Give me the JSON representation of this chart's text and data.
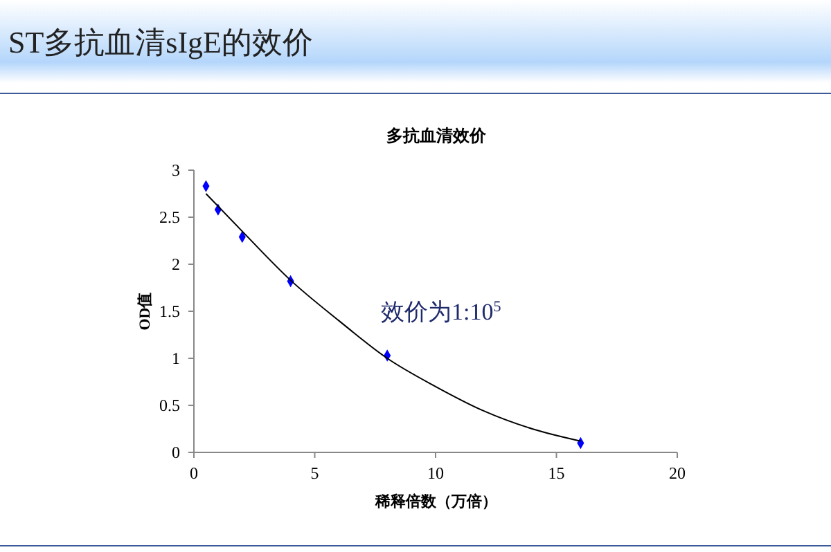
{
  "chart_data": {
    "type": "scatter",
    "title": "ST多抗血清sIgE的效价",
    "subtitle": "多抗血清效价",
    "xlabel": "稀释倍数（万倍）",
    "ylabel": "OD值",
    "series": [
      {
        "color": "#0000ff",
        "marker": "diamond",
        "x": [
          0.5,
          1,
          2,
          4,
          8,
          16
        ],
        "values": [
          2.83,
          2.58,
          2.29,
          1.82,
          1.03,
          0.1
        ]
      },
      {
        "type": "line",
        "color": "#000000",
        "marker": "none",
        "line_style": "solid",
        "x": [
          0.5,
          2,
          4,
          6,
          8,
          10,
          12,
          14,
          16
        ],
        "values": [
          2.75,
          2.35,
          1.83,
          1.4,
          1.0,
          0.7,
          0.44,
          0.25,
          0.12
        ]
      }
    ],
    "xlim": [
      0,
      20
    ],
    "xticks": [
      0,
      5,
      10,
      15,
      20
    ],
    "ylim": [
      0,
      3
    ],
    "yticks": [
      0,
      0.5,
      1,
      1.5,
      2,
      2.5,
      3
    ],
    "annotations": [
      "效价为1:10$^{5}$"
    ],
    "grid": false
  }
}
